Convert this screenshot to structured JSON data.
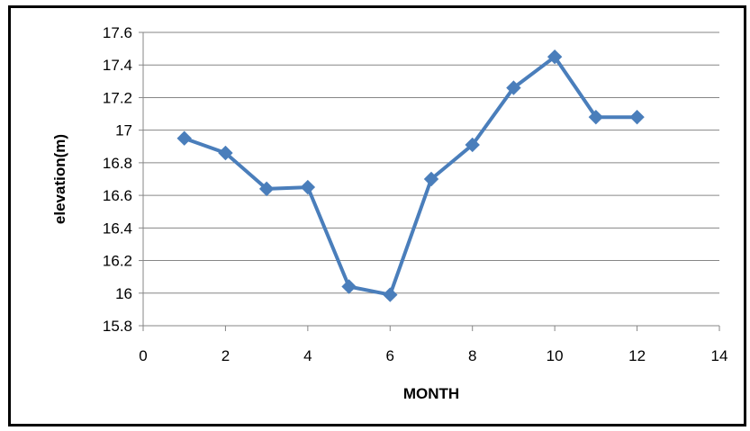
{
  "chart_data": {
    "type": "line",
    "title": "",
    "xlabel": "MONTH",
    "ylabel": "elevation(m)",
    "xlim": [
      0,
      14
    ],
    "ylim": [
      15.8,
      17.6
    ],
    "x_ticks": [
      "0",
      "2",
      "4",
      "6",
      "8",
      "10",
      "12",
      "14"
    ],
    "y_ticks": [
      "15.8",
      "16",
      "16.2",
      "16.4",
      "16.6",
      "16.8",
      "17",
      "17.2",
      "17.4",
      "17.6"
    ],
    "grid": "horizontal",
    "legend": "none",
    "marker": "diamond",
    "series": [
      {
        "color": "#4a7ebb",
        "x": [
          1,
          2,
          3,
          4,
          5,
          6,
          7,
          8,
          9,
          10,
          11,
          12
        ],
        "y": [
          16.95,
          16.86,
          16.64,
          16.65,
          16.04,
          15.99,
          16.7,
          16.91,
          17.26,
          17.45,
          17.08,
          17.08
        ]
      }
    ]
  }
}
